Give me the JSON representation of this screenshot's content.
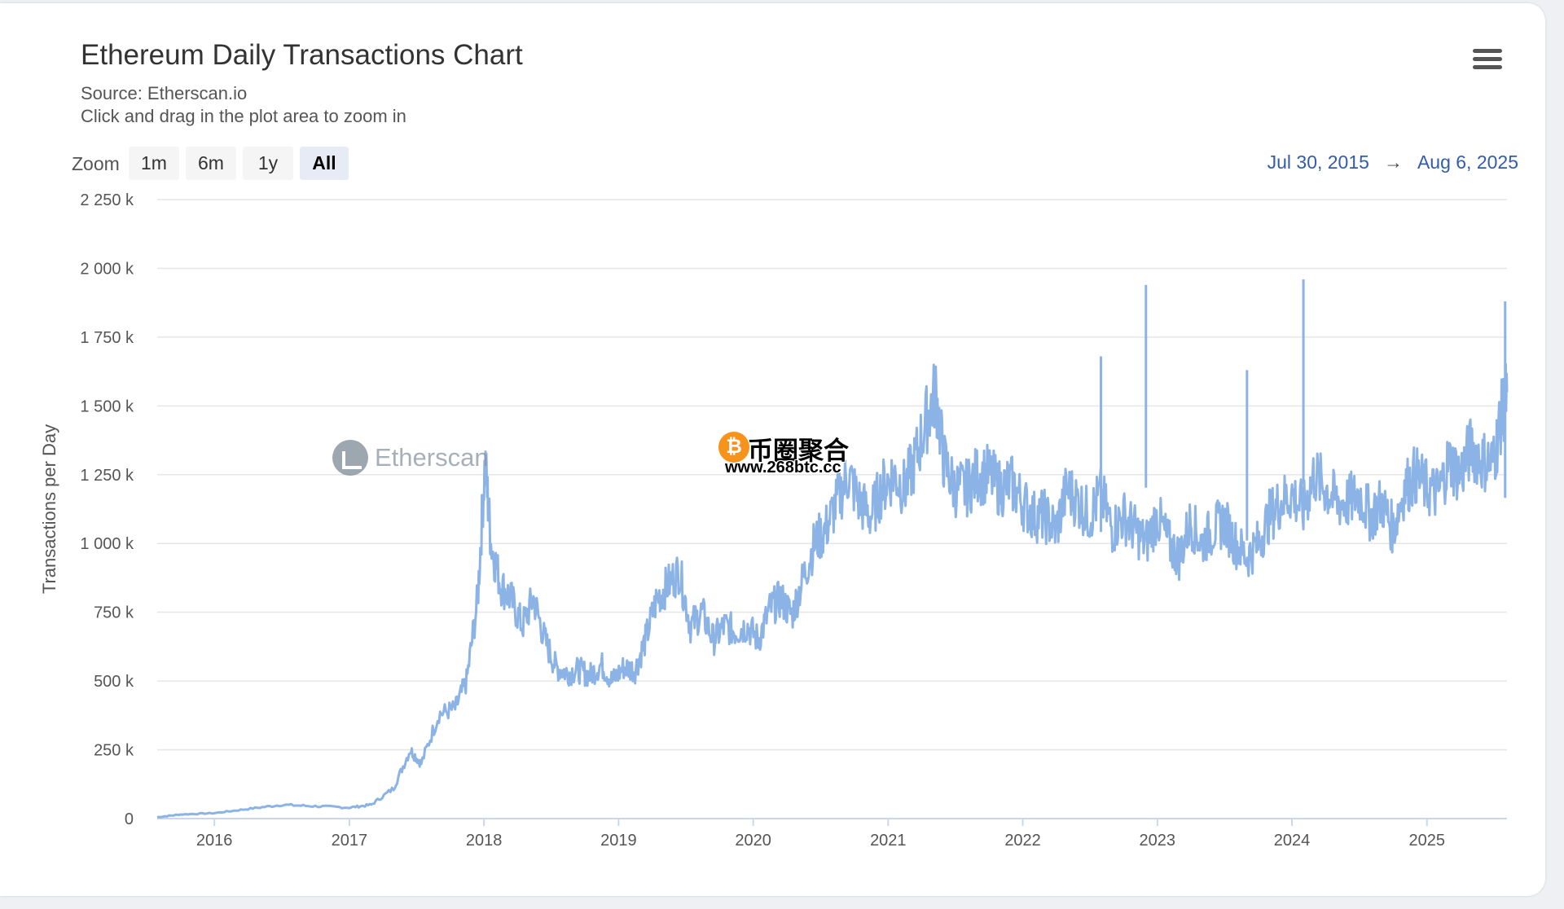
{
  "header": {
    "title": "Ethereum Daily Transactions Chart",
    "source": "Source: Etherscan.io",
    "hint": "Click and drag in the plot area to zoom in"
  },
  "zoom": {
    "label": "Zoom",
    "buttons": [
      "1m",
      "6m",
      "1y",
      "All"
    ],
    "active": "All"
  },
  "range": {
    "from": "Jul 30, 2015",
    "arrow": "→",
    "to": "Aug 6, 2025"
  },
  "icons": {
    "menu": "hamburger-menu-icon"
  },
  "watermarks": {
    "etherscan": "Etherscan",
    "site_cn": "币圈聚合",
    "site_url": "www.268btc.cc"
  },
  "colors": {
    "line": "#8cb3e6",
    "range_text": "#335cad",
    "active_zoom_bg": "#e6ebf5",
    "grid": "#e6e6e6"
  },
  "chart_data": {
    "type": "line",
    "title": "Ethereum Daily Transactions Chart",
    "subtitle": "Source: Etherscan.io",
    "ylabel": "Transactions per Day",
    "xlabel": "",
    "x_range": [
      "2015-07-30",
      "2025-08-06"
    ],
    "ylim": [
      0,
      2250000
    ],
    "y_ticks": [
      0,
      250000,
      500000,
      750000,
      1000000,
      1250000,
      1500000,
      1750000,
      2000000,
      2250000
    ],
    "y_tick_labels": [
      "0",
      "250 k",
      "500 k",
      "750 k",
      "1 000 k",
      "1 250 k",
      "1 500 k",
      "1 750 k",
      "2 000 k",
      "2 250 k"
    ],
    "x_tick_labels": [
      "2016",
      "2017",
      "2018",
      "2019",
      "2020",
      "2021",
      "2022",
      "2023",
      "2024",
      "2025"
    ],
    "grid": true,
    "legend": "none",
    "series": [
      {
        "x": [
          "2015-07-30",
          "2015-10-01",
          "2016-01-01",
          "2016-04-01",
          "2016-07-01",
          "2016-10-01",
          "2017-01-01",
          "2017-03-01",
          "2017-05-01",
          "2017-06-15",
          "2017-07-15",
          "2017-09-01",
          "2017-10-15",
          "2017-11-15",
          "2017-12-15",
          "2018-01-04",
          "2018-01-20",
          "2018-02-15",
          "2018-03-15",
          "2018-04-15",
          "2018-05-15",
          "2018-06-15",
          "2018-07-15",
          "2018-08-15",
          "2018-09-15",
          "2018-10-15",
          "2018-11-15",
          "2018-12-15",
          "2019-01-15",
          "2019-02-15",
          "2019-03-15",
          "2019-04-15",
          "2019-05-15",
          "2019-06-15",
          "2019-07-15",
          "2019-08-15",
          "2019-09-15",
          "2019-10-15",
          "2019-11-15",
          "2019-12-15",
          "2020-01-15",
          "2020-02-15",
          "2020-03-15",
          "2020-04-15",
          "2020-05-15",
          "2020-06-15",
          "2020-07-15",
          "2020-08-15",
          "2020-09-15",
          "2020-10-15",
          "2020-11-15",
          "2020-12-15",
          "2021-01-15",
          "2021-02-15",
          "2021-03-15",
          "2021-04-15",
          "2021-05-10",
          "2021-06-01",
          "2021-07-01",
          "2021-08-01",
          "2021-09-01",
          "2021-10-01",
          "2021-11-01",
          "2021-12-01",
          "2022-01-01",
          "2022-02-01",
          "2022-03-01",
          "2022-04-01",
          "2022-05-01",
          "2022-06-01",
          "2022-07-01",
          "2022-08-01",
          "2022-09-01",
          "2022-10-01",
          "2022-11-01",
          "2022-12-01",
          "2023-01-01",
          "2023-02-01",
          "2023-03-01",
          "2023-04-01",
          "2023-05-01",
          "2023-06-01",
          "2023-07-01",
          "2023-08-01",
          "2023-09-01",
          "2023-10-01",
          "2023-11-01",
          "2023-12-01",
          "2024-01-01",
          "2024-02-01",
          "2024-03-01",
          "2024-04-01",
          "2024-05-01",
          "2024-06-01",
          "2024-07-01",
          "2024-08-01",
          "2024-09-01",
          "2024-10-01",
          "2024-11-01",
          "2024-12-01",
          "2025-01-01",
          "2025-02-01",
          "2025-03-01",
          "2025-04-01",
          "2025-05-01",
          "2025-06-01",
          "2025-07-01",
          "2025-07-20",
          "2025-08-06"
        ],
        "y": [
          5000,
          15000,
          20000,
          35000,
          50000,
          45000,
          40000,
          50000,
          110000,
          250000,
          200000,
          380000,
          400000,
          500000,
          800000,
          1300000,
          1000000,
          850000,
          800000,
          700000,
          800000,
          650000,
          550000,
          530000,
          540000,
          520000,
          560000,
          500000,
          550000,
          540000,
          650000,
          800000,
          850000,
          900000,
          700000,
          750000,
          650000,
          700000,
          680000,
          700000,
          650000,
          760000,
          800000,
          740000,
          870000,
          1000000,
          1050000,
          1150000,
          1250000,
          1150000,
          1100000,
          1200000,
          1250000,
          1200000,
          1300000,
          1450000,
          1550000,
          1300000,
          1200000,
          1200000,
          1250000,
          1250000,
          1200000,
          1220000,
          1150000,
          1100000,
          1100000,
          1050000,
          1200000,
          1150000,
          1100000,
          1180000,
          1050000,
          1100000,
          1050000,
          1000000,
          1100000,
          1000000,
          950000,
          1080000,
          1000000,
          1050000,
          1080000,
          1000000,
          950000,
          1000000,
          1100000,
          1150000,
          1180000,
          1120000,
          1250000,
          1200000,
          1150000,
          1150000,
          1180000,
          1100000,
          1150000,
          1050000,
          1200000,
          1250000,
          1200000,
          1180000,
          1300000,
          1250000,
          1350000,
          1300000,
          1300000,
          1450000,
          1550000
        ]
      }
    ],
    "spikes": [
      {
        "x": "2022-08-01",
        "y": 1680000
      },
      {
        "x": "2022-12-01",
        "y": 1940000
      },
      {
        "x": "2023-09-01",
        "y": 1630000
      },
      {
        "x": "2024-02-01",
        "y": 1960000
      },
      {
        "x": "2025-08-01",
        "y": 1880000
      }
    ]
  }
}
